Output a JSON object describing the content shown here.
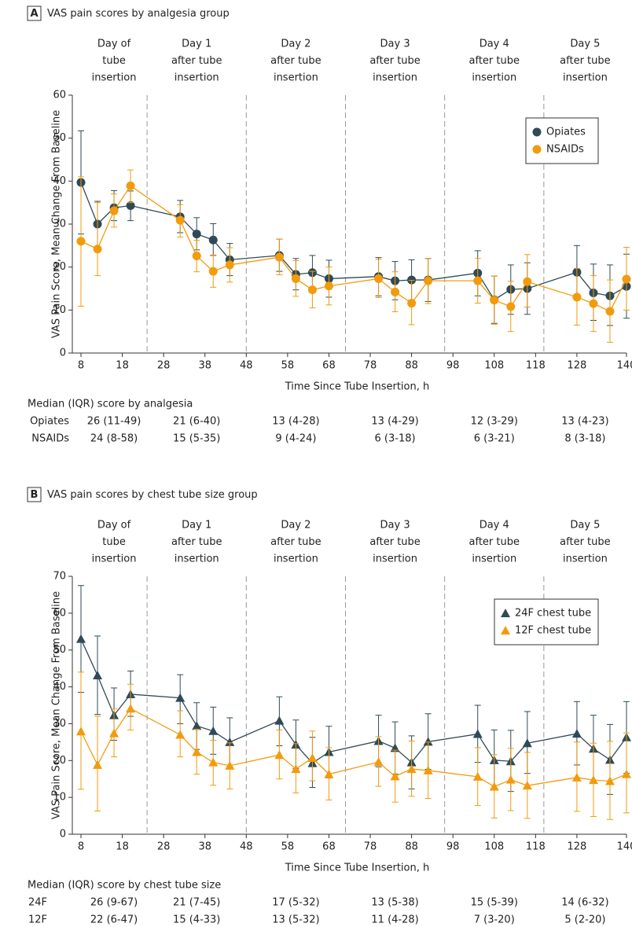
{
  "chart_data": [
    {
      "type": "line",
      "panel": "A",
      "title": "VAS pain scores by analgesia group",
      "x_label": "Time Since Tube Insertion, h",
      "y_label": "VAS Pain Score, Mean Change From Baseline",
      "xlim": [
        8,
        140
      ],
      "xticks": [
        8,
        18,
        28,
        38,
        48,
        58,
        68,
        78,
        88,
        98,
        108,
        118,
        128,
        140
      ],
      "ylim": [
        0,
        60
      ],
      "yticks": [
        0,
        10,
        20,
        30,
        40,
        50,
        60
      ],
      "grid": false,
      "legend": "upper right",
      "day_boundaries": [
        24,
        48,
        72,
        96,
        120
      ],
      "day_labels": [
        [
          "Day of",
          "tube",
          "insertion"
        ],
        [
          "Day 1",
          "after tube",
          "insertion"
        ],
        [
          "Day 2",
          "after tube",
          "insertion"
        ],
        [
          "Day 3",
          "after tube",
          "insertion"
        ],
        [
          "Day 4",
          "after tube",
          "insertion"
        ],
        [
          "Day 5",
          "after tube",
          "insertion"
        ]
      ],
      "x": [
        8,
        12,
        16,
        20,
        32,
        36,
        40,
        44,
        56,
        60,
        64,
        68,
        80,
        84,
        88,
        92,
        104,
        108,
        112,
        116,
        128,
        132,
        136,
        140
      ],
      "series": [
        {
          "name": "Opiates",
          "color": "#2f4a56",
          "marker": "circle",
          "values": [
            39.7,
            30,
            33.8,
            34.3,
            31.7,
            27.7,
            26.3,
            21.7,
            22.7,
            18.3,
            18.7,
            17.3,
            17.8,
            16.8,
            17,
            17,
            18.6,
            12.4,
            14.8,
            15,
            18.8,
            14,
            13.3,
            15.5
          ],
          "lower": [
            27.7,
            24.3,
            30.8,
            30.8,
            28,
            24,
            22.7,
            18,
            19,
            14.7,
            14.7,
            13,
            13.3,
            12.4,
            12.3,
            12,
            13.3,
            6.9,
            9,
            9,
            12.7,
            7.6,
            6.4,
            8.1
          ],
          "upper": [
            51.7,
            35.3,
            37.8,
            37.7,
            35.5,
            31.5,
            30.1,
            25.5,
            26.5,
            22,
            22.7,
            21.6,
            22.2,
            21.3,
            21.7,
            22,
            23.8,
            17.9,
            20.5,
            21,
            25,
            20.7,
            20.5,
            23
          ]
        },
        {
          "name": "NSAIDs",
          "color": "#f29b0d",
          "marker": "circle",
          "values": [
            26,
            24.2,
            33.1,
            38.9,
            30.9,
            22.6,
            19,
            20.5,
            22.3,
            17.3,
            14.7,
            15.6,
            17.3,
            14.2,
            11.6,
            16.8,
            16.8,
            12.3,
            10.8,
            16.6,
            13,
            11.5,
            9.7,
            17.2
          ],
          "lower": [
            10.9,
            18,
            29.3,
            35,
            27,
            18.9,
            15.3,
            16.5,
            18.2,
            13.2,
            10.5,
            11.2,
            12.9,
            9.6,
            6.6,
            11.5,
            11.6,
            6.7,
            5,
            10.7,
            6.5,
            5,
            2.5,
            10
          ],
          "upper": [
            41,
            35,
            37,
            42.6,
            34.5,
            26.2,
            22.8,
            24.5,
            26.5,
            21.5,
            19,
            20,
            21.8,
            18.9,
            16.9,
            22,
            22,
            17.9,
            16.7,
            22.9,
            19.7,
            18,
            17,
            24.6
          ]
        }
      ],
      "median_table": {
        "title": "Median (IQR) score by analgesia",
        "rows": [
          {
            "name": "Opiates",
            "values": [
              "26 (11-49)",
              "21 (6-40)",
              "13 (4-28)",
              "13 (4-29)",
              "12 (3-29)",
              "13 (4-23)"
            ]
          },
          {
            "name": "NSAIDs",
            "values": [
              "24 (8-58)",
              "15 (5-35)",
              "9 (4-24)",
              "6 (3-18)",
              "6 (3-21)",
              "8 (3-18)"
            ]
          }
        ]
      }
    },
    {
      "type": "line",
      "panel": "B",
      "title": "VAS pain scores by chest tube size group",
      "x_label": "Time Since Tube Insertion, h",
      "y_label": "VAS Pain Score, Mean Change From Baseline",
      "xlim": [
        8,
        140
      ],
      "xticks": [
        8,
        18,
        28,
        38,
        48,
        58,
        68,
        78,
        88,
        98,
        108,
        118,
        128,
        140
      ],
      "ylim": [
        0,
        70
      ],
      "yticks": [
        0,
        10,
        20,
        30,
        40,
        50,
        60,
        70
      ],
      "grid": false,
      "legend": "upper right",
      "day_boundaries": [
        24,
        48,
        72,
        96,
        120
      ],
      "day_labels": [
        [
          "Day of",
          "tube",
          "insertion"
        ],
        [
          "Day 1",
          "after tube",
          "insertion"
        ],
        [
          "Day 2",
          "after tube",
          "insertion"
        ],
        [
          "Day 3",
          "after tube",
          "insertion"
        ],
        [
          "Day 4",
          "after tube",
          "insertion"
        ],
        [
          "Day 5",
          "after tube",
          "insertion"
        ]
      ],
      "x": [
        8,
        12,
        16,
        20,
        32,
        36,
        40,
        44,
        56,
        60,
        64,
        68,
        80,
        84,
        88,
        92,
        104,
        108,
        112,
        116,
        128,
        132,
        136,
        140
      ],
      "series": [
        {
          "name": "24F chest tube",
          "color": "#2f4a56",
          "marker": "triangle",
          "values": [
            53,
            43.1,
            32.3,
            38,
            37,
            29.4,
            28,
            25,
            30.8,
            24.3,
            19.3,
            22.3,
            25.3,
            23.4,
            19.5,
            25.1,
            27.2,
            20.1,
            19.8,
            24.7,
            27.3,
            23.2,
            20.2,
            26.3
          ],
          "lower": [
            38.5,
            32.5,
            25.5,
            32,
            30,
            23,
            21.7,
            18.3,
            24,
            17.8,
            12.7,
            15.3,
            18.3,
            16.3,
            12.3,
            17.6,
            19.5,
            12.2,
            11.6,
            16.5,
            18.8,
            14,
            10.8,
            16.5
          ],
          "upper": [
            67.5,
            53.8,
            39.7,
            44.3,
            43.3,
            35.7,
            34.5,
            31.6,
            37.3,
            31,
            26.3,
            29.3,
            32.3,
            30.5,
            26.7,
            32.7,
            35,
            28.3,
            28.2,
            33.3,
            36,
            32.3,
            29.8,
            36
          ]
        },
        {
          "name": "12F chest tube",
          "color": "#f29b0d",
          "marker": "triangle",
          "values": [
            27.9,
            18.8,
            27.4,
            34.1,
            27,
            22.3,
            19.5,
            18.6,
            21.5,
            17.7,
            20.7,
            16.3,
            19.6,
            15.7,
            17.7,
            17.3,
            15.6,
            12.9,
            14.8,
            13.2,
            15.4,
            14.7,
            14.4,
            16.3
          ],
          "lower": [
            12.2,
            6.3,
            21,
            28.3,
            21,
            16.3,
            13.3,
            12.3,
            15,
            11.2,
            14.5,
            9.3,
            13,
            8.7,
            10.3,
            9.7,
            7.8,
            4.4,
            6.4,
            4.3,
            6.2,
            4.8,
            4,
            5.8
          ],
          "upper": [
            44,
            32,
            34,
            40.7,
            33.5,
            28.5,
            25.5,
            24.8,
            28.3,
            24.6,
            28,
            23.5,
            26.5,
            22.8,
            25.3,
            25,
            23.5,
            21.6,
            23.3,
            22.2,
            25,
            24.7,
            25.2,
            27.5
          ]
        }
      ],
      "median_table": {
        "title": "Median (IQR) score by chest tube size",
        "rows": [
          {
            "name": "24F",
            "values": [
              "26 (9-67)",
              "21 (7-45)",
              "17 (5-32)",
              "13 (5-38)",
              "15 (5-39)",
              "14 (6-32)"
            ]
          },
          {
            "name": "12F",
            "values": [
              "22 (6-47)",
              "15 (4-33)",
              "13 (5-32)",
              "11 (4-28)",
              "7 (3-20)",
              "5 (2-20)"
            ]
          }
        ]
      }
    }
  ]
}
